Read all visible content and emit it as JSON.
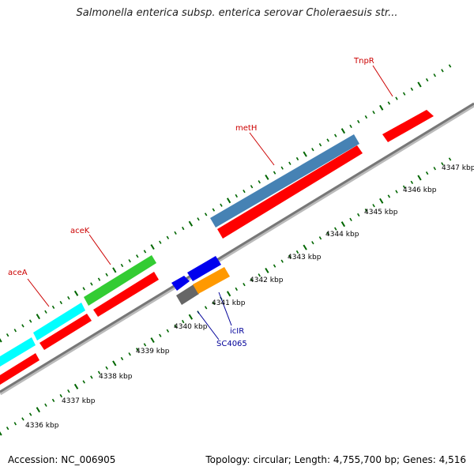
{
  "title": "Salmonella enterica subsp. enterica serovar Choleraesuis str...",
  "footer": {
    "accession": "Accession: NC_006905",
    "summary": "Topology: circular; Length: 4,755,700 bp; Genes: 4,516"
  },
  "ruler": {
    "unit": "kbp",
    "labels": [
      "4336 kbp",
      "4337 kbp",
      "4338 kbp",
      "4339 kbp",
      "4340 kbp",
      "4341 kbp",
      "4342 kbp",
      "4343 kbp",
      "4344 kbp",
      "4345 kbp",
      "4346 kbp",
      "4347 kbp"
    ]
  },
  "genes": [
    {
      "name": "aceA",
      "color": "#cc0000"
    },
    {
      "name": "aceK",
      "color": "#cc0000"
    },
    {
      "name": "metH",
      "color": "#cc0000"
    },
    {
      "name": "TnpR",
      "color": "#cc0000"
    },
    {
      "name": "icIR",
      "color": "#000099"
    },
    {
      "name": "SC4065",
      "color": "#000099"
    }
  ],
  "colors": {
    "cds": "#ff0000",
    "cyan_feature": "#00ffff",
    "green_feature": "#33cc33",
    "steel_feature": "#4682b4",
    "blue_feature": "#0000ee",
    "orange_feature": "#ff9900",
    "gray_feature": "#666666",
    "tick": "#006600",
    "backbone": "#888888"
  }
}
